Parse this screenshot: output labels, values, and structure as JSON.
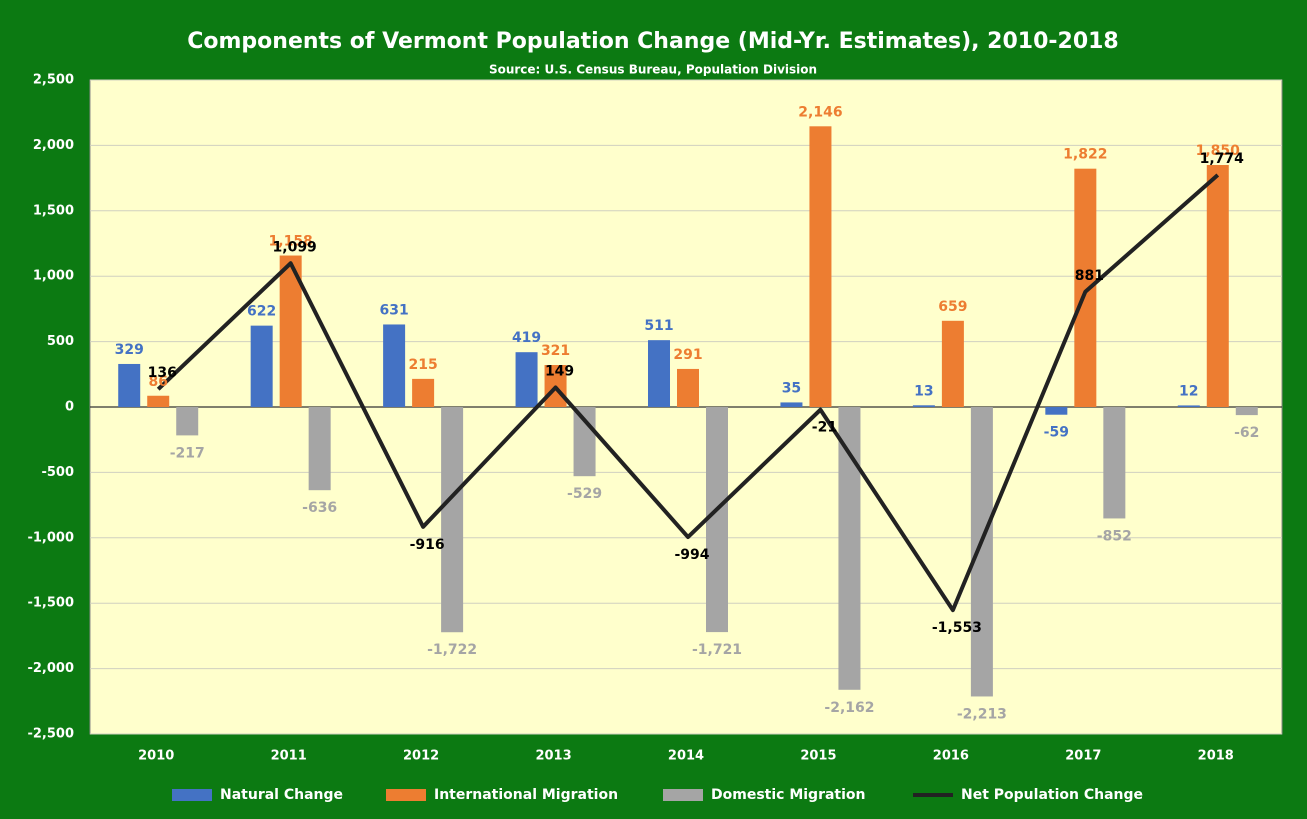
{
  "chart_data": {
    "type": "bar",
    "title": "Components of Vermont Population Change (Mid-Yr. Estimates), 2010-2018",
    "subtitle": "Source: U.S. Census Bureau, Population Division",
    "categories": [
      "2010",
      "2011",
      "2012",
      "2013",
      "2014",
      "2015",
      "2016",
      "2017",
      "2018"
    ],
    "series": [
      {
        "name": "Natural Change",
        "color": "#4472c4",
        "type": "bar",
        "values": [
          329,
          622,
          631,
          419,
          511,
          35,
          13,
          -59,
          12
        ],
        "value_labels": [
          "329",
          "622",
          "631",
          "419",
          "511",
          "35",
          "13",
          "-59",
          "12"
        ]
      },
      {
        "name": "International Migration",
        "color": "#ed7d31",
        "type": "bar",
        "values": [
          86,
          1158,
          215,
          321,
          291,
          2146,
          659,
          1822,
          1850
        ],
        "value_labels": [
          "86",
          "1,158",
          "215",
          "321",
          "291",
          "2,146",
          "659",
          "1,822",
          "1,850"
        ]
      },
      {
        "name": "Domestic Migration",
        "color": "#a5a5a5",
        "type": "bar",
        "values": [
          -217,
          -636,
          -1722,
          -529,
          -1721,
          -2162,
          -2213,
          -852,
          -62
        ],
        "value_labels": [
          "-217",
          "-636",
          "-1,722",
          "-529",
          "-1,721",
          "-2,162",
          "-2,213",
          "-852",
          "-62"
        ]
      },
      {
        "name": "Net Population Change",
        "color": "#222222",
        "type": "line",
        "values": [
          136,
          1099,
          -916,
          149,
          -994,
          -21,
          -1553,
          881,
          1774
        ],
        "value_labels": [
          "136",
          "1,099",
          "-916",
          "149",
          "-994",
          "-21",
          "-1,553",
          "881",
          "1,774"
        ]
      }
    ],
    "ylim": [
      -2500,
      2500
    ],
    "yticks": [
      {
        "value": -2500,
        "label": "-2,500"
      },
      {
        "value": -2000,
        "label": "-2,000"
      },
      {
        "value": -1500,
        "label": "-1,500"
      },
      {
        "value": -1000,
        "label": "-1,000"
      },
      -500,
      0,
      500,
      {
        "value": 1000,
        "label": "1,000"
      },
      {
        "value": 1500,
        "label": "1,500"
      },
      {
        "value": 2000,
        "label": "2,000"
      },
      {
        "value": 2500,
        "label": "2,500"
      }
    ],
    "grid": true,
    "legend": "bottom"
  }
}
